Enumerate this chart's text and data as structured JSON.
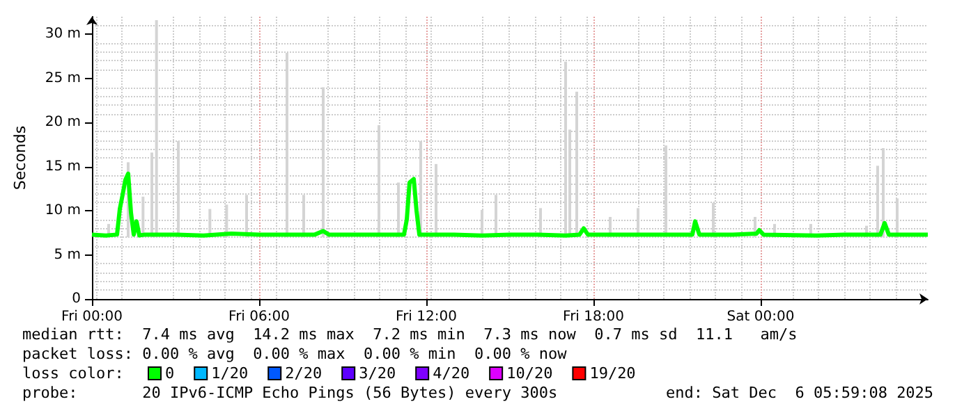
{
  "chart_data": {
    "type": "line",
    "ylabel": "Seconds",
    "legend_title": "loss color:",
    "legend": "bottom",
    "grid": true,
    "marker": "none",
    "line_style": "solid",
    "xlim": [
      "2025-12-05T00:00",
      "2025-12-06T06:00"
    ],
    "xticks": [
      {
        "value": "2025-12-05T00:00",
        "label": "Fri 00:00"
      },
      {
        "value": "2025-12-05T06:00",
        "label": "Fri 06:00"
      },
      {
        "value": "2025-12-05T12:00",
        "label": "Fri 12:00"
      },
      {
        "value": "2025-12-05T18:00",
        "label": "Fri 18:00"
      },
      {
        "value": "2025-12-06T00:00",
        "label": "Sat 00:00"
      }
    ],
    "ylim": [
      0,
      32
    ],
    "yticks": [
      0,
      {
        "value": 5,
        "label": "5 m"
      },
      {
        "value": 10,
        "label": "10 m"
      },
      {
        "value": 15,
        "label": "15 m"
      },
      {
        "value": 20,
        "label": "20 m"
      },
      {
        "value": 25,
        "label": "25 m"
      },
      {
        "value": 30,
        "label": "30 m"
      }
    ],
    "annotations": [
      "median rtt:  7.4 ms avg  14.2 ms max  7.2 ms min  7.3 ms now  0.7 ms sd  11.1   am/s",
      "packet loss: 0.00 % avg  0.00 % max  0.00 % min  0.00 % now",
      "probe:       20 IPv6-ICMP Echo Pings (56 Bytes) every 300s",
      "end: Sat Dec  6 05:59:08 2025"
    ],
    "series": [
      {
        "type": "bar",
        "color": "#d4d4d4",
        "x": [
          "2025-12-05T00:36",
          "2025-12-05T01:18",
          "2025-12-05T01:50",
          "2025-12-05T02:09",
          "2025-12-05T02:19",
          "2025-12-05T03:06",
          "2025-12-05T04:14",
          "2025-12-05T04:50",
          "2025-12-05T05:33",
          "2025-12-05T07:00",
          "2025-12-05T07:36",
          "2025-12-05T08:18",
          "2025-12-05T10:18",
          "2025-12-05T11:00",
          "2025-12-05T11:48",
          "2025-12-05T12:21",
          "2025-12-05T14:00",
          "2025-12-05T14:30",
          "2025-12-05T16:06",
          "2025-12-05T17:00",
          "2025-12-05T17:09",
          "2025-12-05T17:24",
          "2025-12-05T18:36",
          "2025-12-05T19:36",
          "2025-12-05T20:36",
          "2025-12-05T22:18",
          "2025-12-05T23:48",
          "2025-12-06T00:30",
          "2025-12-06T01:48",
          "2025-12-06T03:48",
          "2025-12-06T04:12",
          "2025-12-06T04:24",
          "2025-12-06T04:54"
        ],
        "base": [
          7,
          7,
          7,
          7,
          7,
          7,
          7,
          7,
          7,
          7,
          7,
          7,
          7,
          7,
          7,
          7,
          7,
          7,
          7,
          7,
          7,
          7,
          7,
          7,
          7,
          7,
          7,
          7,
          7,
          7,
          7,
          7,
          7
        ],
        "values": [
          1.5,
          8.5,
          4.6,
          9.6,
          24.6,
          10.9,
          3.2,
          3.7,
          4.8,
          20.9,
          4.8,
          17,
          12.7,
          6.2,
          10.9,
          8.3,
          3.1,
          4.8,
          3.3,
          19.9,
          12.2,
          16.5,
          2.3,
          3.3,
          10.4,
          3.9,
          2.3,
          1.5,
          1.5,
          1.3,
          8.1,
          10.1,
          4.4
        ]
      },
      {
        "name": "0",
        "color": "#00ff00",
        "x": [
          "2025-12-05T00:00",
          "2025-12-05T00:30",
          "2025-12-05T00:54",
          "2025-12-05T01:00",
          "2025-12-05T01:06",
          "2025-12-05T01:12",
          "2025-12-05T01:18",
          "2025-12-05T01:24",
          "2025-12-05T01:30",
          "2025-12-05T01:36",
          "2025-12-05T01:42",
          "2025-12-05T01:54",
          "2025-12-05T03:00",
          "2025-12-05T04:00",
          "2025-12-05T05:00",
          "2025-12-05T06:00",
          "2025-12-05T07:00",
          "2025-12-05T08:00",
          "2025-12-05T08:18",
          "2025-12-05T08:30",
          "2025-12-05T09:30",
          "2025-12-05T10:30",
          "2025-12-05T11:12",
          "2025-12-05T11:18",
          "2025-12-05T11:24",
          "2025-12-05T11:33",
          "2025-12-05T11:39",
          "2025-12-05T11:45",
          "2025-12-05T13:00",
          "2025-12-05T14:00",
          "2025-12-05T15:00",
          "2025-12-05T16:00",
          "2025-12-05T17:00",
          "2025-12-05T17:30",
          "2025-12-05T17:39",
          "2025-12-05T17:48",
          "2025-12-05T19:00",
          "2025-12-05T21:00",
          "2025-12-05T21:33",
          "2025-12-05T21:39",
          "2025-12-05T21:48",
          "2025-12-05T23:00",
          "2025-12-05T23:51",
          "2025-12-05T23:57",
          "2025-12-06T00:06",
          "2025-12-06T02:00",
          "2025-12-06T03:00",
          "2025-12-06T04:18",
          "2025-12-06T04:27",
          "2025-12-06T04:36",
          "2025-12-06T06:00"
        ],
        "values": [
          7.3,
          7.2,
          7.3,
          10.2,
          11.8,
          13.5,
          14.2,
          9.8,
          7.3,
          8.8,
          7.2,
          7.3,
          7.3,
          7.2,
          7.4,
          7.3,
          7.3,
          7.3,
          7.7,
          7.3,
          7.3,
          7.3,
          7.3,
          9.0,
          13.2,
          13.6,
          10.0,
          7.3,
          7.3,
          7.2,
          7.3,
          7.3,
          7.2,
          7.3,
          8.0,
          7.3,
          7.3,
          7.3,
          7.3,
          8.8,
          7.3,
          7.3,
          7.4,
          7.8,
          7.3,
          7.2,
          7.3,
          7.3,
          8.6,
          7.3,
          7.3
        ]
      },
      {
        "name": "1/20",
        "color": "#00b8ff"
      },
      {
        "name": "2/20",
        "color": "#0059ff"
      },
      {
        "name": "3/20",
        "color": "#5e00ff"
      },
      {
        "name": "4/20",
        "color": "#7e00ff"
      },
      {
        "name": "10/20",
        "color": "#dd00ff"
      },
      {
        "name": "19/20",
        "color": "#ff0000"
      }
    ]
  }
}
